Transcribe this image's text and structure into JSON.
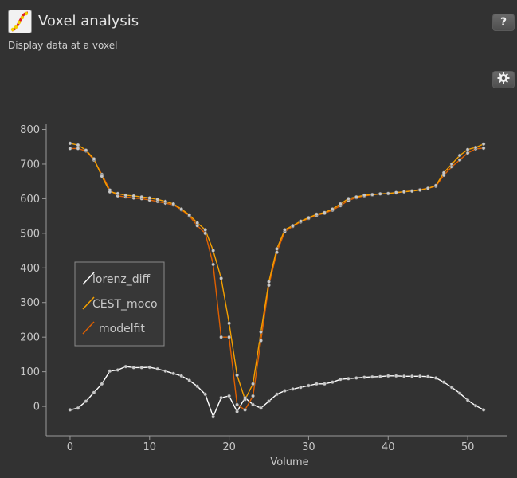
{
  "header": {
    "title": "Voxel analysis",
    "subtitle": "Display data at a voxel",
    "help_label": "?",
    "help_icon": "question-mark-icon",
    "settings_icon": "gear-icon"
  },
  "colors": {
    "background": "#323232",
    "lorenz_diff": "#ffffff",
    "CEST_moco": "#f5a000",
    "modelfit": "#e06000",
    "marker_fill": "#c8c8c8"
  },
  "chart_data": {
    "type": "line",
    "xlabel": "Volume",
    "ylabel": "",
    "xlim": [
      -3,
      55
    ],
    "ylim": [
      -85,
      815
    ],
    "xticks": [
      0,
      10,
      20,
      30,
      40,
      50
    ],
    "yticks": [
      0,
      100,
      200,
      300,
      400,
      500,
      600,
      700,
      800
    ],
    "grid": false,
    "legend_position": "left-middle",
    "x": [
      0,
      1,
      2,
      3,
      4,
      5,
      6,
      7,
      8,
      9,
      10,
      11,
      12,
      13,
      14,
      15,
      16,
      17,
      18,
      19,
      20,
      21,
      22,
      23,
      24,
      25,
      26,
      27,
      28,
      29,
      30,
      31,
      32,
      33,
      34,
      35,
      36,
      37,
      38,
      39,
      40,
      41,
      42,
      43,
      44,
      45,
      46,
      47,
      48,
      49,
      50,
      51,
      52
    ],
    "series": [
      {
        "name": "lorenz_diff",
        "values": [
          -10,
          -5,
          15,
          40,
          65,
          102,
          105,
          115,
          112,
          112,
          113,
          108,
          102,
          95,
          88,
          75,
          58,
          35,
          -30,
          25,
          30,
          -15,
          25,
          5,
          -5,
          15,
          35,
          45,
          50,
          55,
          60,
          65,
          65,
          70,
          78,
          80,
          82,
          84,
          85,
          86,
          88,
          88,
          87,
          87,
          87,
          86,
          82,
          70,
          55,
          38,
          18,
          2,
          -10
        ]
      },
      {
        "name": "CEST_moco",
        "values": [
          760,
          755,
          740,
          715,
          665,
          620,
          615,
          610,
          608,
          605,
          602,
          598,
          592,
          585,
          570,
          553,
          530,
          510,
          450,
          370,
          240,
          90,
          20,
          65,
          215,
          360,
          455,
          510,
          522,
          535,
          545,
          555,
          560,
          570,
          585,
          600,
          605,
          610,
          612,
          614,
          615,
          618,
          620,
          622,
          625,
          630,
          638,
          675,
          700,
          725,
          742,
          748,
          758
        ]
      },
      {
        "name": "modelfit",
        "values": [
          745,
          745,
          738,
          712,
          670,
          625,
          608,
          605,
          602,
          600,
          596,
          592,
          587,
          582,
          568,
          550,
          522,
          500,
          410,
          200,
          200,
          5,
          -10,
          30,
          190,
          350,
          445,
          505,
          520,
          533,
          543,
          552,
          558,
          567,
          580,
          595,
          603,
          608,
          611,
          614,
          615,
          617,
          620,
          623,
          626,
          630,
          636,
          668,
          692,
          712,
          732,
          744,
          746
        ]
      }
    ]
  }
}
